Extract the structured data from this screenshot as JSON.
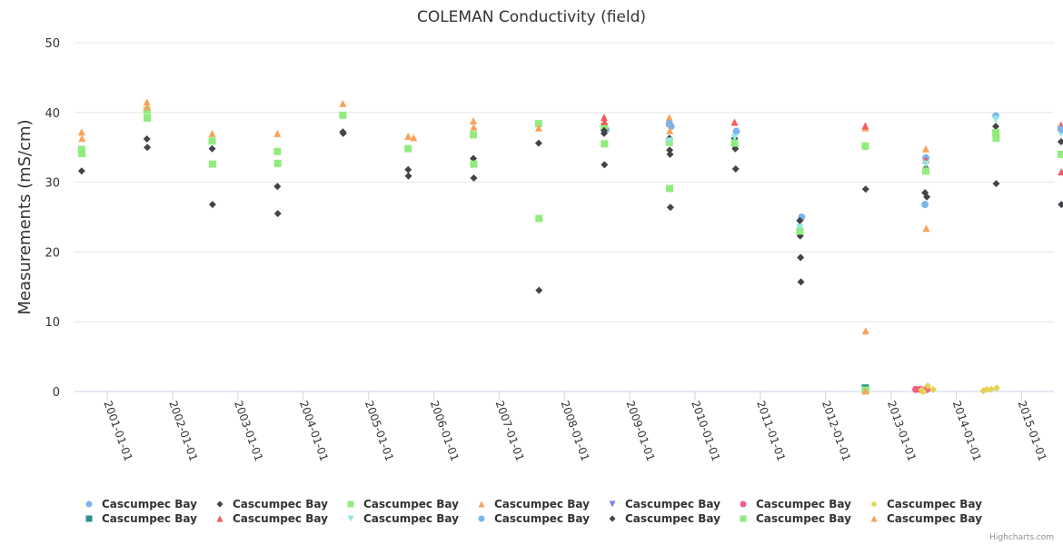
{
  "chart_data": {
    "type": "scatter",
    "title": "COLEMAN Conductivity (field)",
    "xlabel": "",
    "ylabel": "Measurements (mS/cm)",
    "ylim": [
      0,
      50
    ],
    "yticks": [
      0,
      10,
      20,
      30,
      40,
      50
    ],
    "xlim": [
      "2000-07-01",
      "2015-07-01"
    ],
    "xticks": [
      "2001-01-01",
      "2002-01-01",
      "2003-01-01",
      "2004-01-01",
      "2005-01-01",
      "2006-01-01",
      "2007-01-01",
      "2008-01-01",
      "2009-01-01",
      "2010-01-01",
      "2011-01-01",
      "2012-01-01",
      "2013-01-01",
      "2014-01-01",
      "2015-01-01"
    ],
    "grid": "horizontal",
    "legend_position": "bottom",
    "credits": "Highcharts.com",
    "series": [
      {
        "name": "Cascumpec Bay",
        "marker": "circle",
        "color": "#7cb5ec",
        "points": [
          [
            "2008-08-20",
            37.5
          ],
          [
            "2009-08-20",
            38.0
          ],
          [
            "2010-08-20",
            37.3
          ],
          [
            "2011-08-20",
            25.0
          ],
          [
            "2013-07-15",
            33.5
          ],
          [
            "2013-07-10",
            26.8
          ],
          [
            "2014-08-10",
            39.5
          ],
          [
            "2015-08-10",
            37.8
          ]
        ]
      },
      {
        "name": "Cascumpec Bay",
        "marker": "diamond",
        "color": "#434348",
        "points": [
          [
            "2000-08-10",
            31.6
          ],
          [
            "2001-08-10",
            36.2
          ],
          [
            "2001-08-12",
            35.0
          ],
          [
            "2002-08-10",
            34.8
          ],
          [
            "2002-08-12",
            26.8
          ],
          [
            "2003-08-10",
            29.4
          ],
          [
            "2003-08-12",
            25.5
          ],
          [
            "2004-08-10",
            37.2
          ],
          [
            "2004-08-12",
            37.0
          ],
          [
            "2005-08-10",
            31.8
          ],
          [
            "2005-08-12",
            30.9
          ],
          [
            "2006-08-10",
            33.4
          ],
          [
            "2006-08-12",
            30.6
          ],
          [
            "2007-08-10",
            35.6
          ],
          [
            "2007-08-12",
            14.5
          ],
          [
            "2008-08-10",
            37.0
          ],
          [
            "2008-08-12",
            32.5
          ],
          [
            "2009-08-10",
            36.3
          ],
          [
            "2009-08-12",
            34.6
          ],
          [
            "2009-08-14",
            34.0
          ],
          [
            "2009-08-16",
            26.4
          ],
          [
            "2010-08-10",
            36.3
          ],
          [
            "2010-08-12",
            35.2
          ],
          [
            "2010-08-14",
            34.8
          ],
          [
            "2010-08-16",
            31.9
          ],
          [
            "2011-08-10",
            24.5
          ],
          [
            "2011-08-12",
            22.3
          ],
          [
            "2011-08-14",
            19.2
          ],
          [
            "2011-08-16",
            15.7
          ],
          [
            "2012-08-10",
            35.1
          ],
          [
            "2012-08-12",
            29.0
          ],
          [
            "2013-07-10",
            28.5
          ],
          [
            "2013-07-20",
            27.9
          ],
          [
            "2013-07-15",
            32.0
          ],
          [
            "2014-08-10",
            38.0
          ],
          [
            "2014-08-12",
            29.8
          ],
          [
            "2015-08-10",
            35.8
          ],
          [
            "2015-08-12",
            26.8
          ]
        ]
      },
      {
        "name": "Cascumpec Bay",
        "marker": "square",
        "color": "#90ed7d",
        "points": [
          [
            "2000-08-10",
            34.7
          ],
          [
            "2000-08-12",
            34.1
          ],
          [
            "2001-08-10",
            40.3
          ],
          [
            "2001-08-12",
            39.2
          ],
          [
            "2002-08-10",
            35.9
          ],
          [
            "2002-08-12",
            32.6
          ],
          [
            "2003-08-10",
            34.4
          ],
          [
            "2003-08-12",
            32.7
          ],
          [
            "2004-08-10",
            39.6
          ],
          [
            "2005-08-10",
            34.8
          ],
          [
            "2006-08-10",
            36.8
          ],
          [
            "2006-08-12",
            32.6
          ],
          [
            "2007-08-10",
            38.4
          ],
          [
            "2007-08-12",
            24.8
          ],
          [
            "2008-08-10",
            38.0
          ],
          [
            "2008-08-12",
            35.5
          ],
          [
            "2009-08-10",
            35.7
          ],
          [
            "2009-08-12",
            29.1
          ],
          [
            "2010-08-10",
            35.6
          ],
          [
            "2011-08-10",
            23.0
          ],
          [
            "2012-08-10",
            35.2
          ],
          [
            "2012-08-12",
            0.3
          ],
          [
            "2013-07-15",
            31.6
          ],
          [
            "2014-08-10",
            37.1
          ],
          [
            "2014-08-12",
            36.3
          ],
          [
            "2015-08-10",
            34.0
          ]
        ]
      },
      {
        "name": "Cascumpec Bay",
        "marker": "triangle",
        "color": "#f7a35c",
        "points": [
          [
            "2000-08-10",
            37.2
          ],
          [
            "2000-08-12",
            36.3
          ],
          [
            "2001-08-10",
            41.5
          ],
          [
            "2001-08-12",
            40.8
          ],
          [
            "2002-08-10",
            37.0
          ],
          [
            "2003-08-10",
            37.0
          ],
          [
            "2004-08-10",
            41.3
          ],
          [
            "2005-08-10",
            36.6
          ],
          [
            "2005-09-10",
            36.4
          ],
          [
            "2006-08-10",
            38.8
          ],
          [
            "2006-08-12",
            37.9
          ],
          [
            "2007-08-10",
            37.8
          ],
          [
            "2009-08-10",
            39.3
          ],
          [
            "2009-08-12",
            37.4
          ],
          [
            "2012-08-10",
            37.8
          ],
          [
            "2012-08-12",
            8.7
          ],
          [
            "2012-08-14",
            0.2
          ],
          [
            "2013-07-15",
            34.8
          ],
          [
            "2013-07-17",
            23.4
          ]
        ]
      },
      {
        "name": "Cascumpec Bay",
        "marker": "triangle-down",
        "color": "#8085e9",
        "points": []
      },
      {
        "name": "Cascumpec Bay",
        "marker": "circle",
        "color": "#f15c80",
        "points": [
          [
            "2013-05-20",
            0.3
          ],
          [
            "2013-06-15",
            0.3
          ],
          [
            "2013-07-20",
            0.3
          ]
        ]
      },
      {
        "name": "Cascumpec Bay",
        "marker": "diamond",
        "color": "#e4d354",
        "points": [
          [
            "2013-06-20",
            0.2
          ],
          [
            "2013-07-01",
            0.0
          ],
          [
            "2013-07-25",
            0.8
          ],
          [
            "2013-08-25",
            0.3
          ],
          [
            "2014-06-01",
            0.1
          ],
          [
            "2014-06-20",
            0.3
          ],
          [
            "2014-07-15",
            0.3
          ],
          [
            "2014-08-15",
            0.5
          ]
        ]
      },
      {
        "name": "Cascumpec Bay",
        "marker": "square",
        "color": "#2b908f",
        "points": [
          [
            "2012-08-10",
            0.5
          ]
        ]
      },
      {
        "name": "Cascumpec Bay",
        "marker": "triangle",
        "color": "#f45b5b",
        "points": [
          [
            "2008-08-10",
            39.3
          ],
          [
            "2008-08-12",
            38.7
          ],
          [
            "2009-08-10",
            38.5
          ],
          [
            "2010-08-10",
            38.6
          ],
          [
            "2012-08-10",
            38.1
          ],
          [
            "2013-07-15",
            33.2
          ],
          [
            "2015-08-10",
            38.2
          ],
          [
            "2015-08-12",
            31.5
          ]
        ]
      },
      {
        "name": "Cascumpec Bay",
        "marker": "triangle-down",
        "color": "#91e8e1",
        "points": [
          [
            "2009-08-10",
            35.9
          ],
          [
            "2010-08-10",
            36.4
          ],
          [
            "2011-08-10",
            23.5
          ],
          [
            "2013-07-15",
            32.6
          ],
          [
            "2014-08-10",
            39.0
          ],
          [
            "2015-08-10",
            37.0
          ]
        ]
      },
      {
        "name": "Cascumpec Bay",
        "marker": "circle",
        "color": "#7cb5ec",
        "points": [
          [
            "2009-08-10",
            38.4
          ],
          [
            "2015-08-10",
            37.6
          ]
        ]
      },
      {
        "name": "Cascumpec Bay",
        "marker": "diamond",
        "color": "#434348",
        "points": [
          [
            "2008-08-10",
            37.4
          ],
          [
            "2011-08-10",
            24.5
          ]
        ]
      },
      {
        "name": "Cascumpec Bay",
        "marker": "square",
        "color": "#90ed7d",
        "points": [
          [
            "2012-08-10",
            0.2
          ]
        ]
      },
      {
        "name": "Cascumpec Bay",
        "marker": "triangle",
        "color": "#f7a35c",
        "points": [
          [
            "2012-08-10",
            0.1
          ]
        ]
      }
    ],
    "legend": {
      "rows": [
        [
          0,
          1,
          2,
          3,
          4,
          5,
          6
        ],
        [
          7,
          8,
          9,
          10,
          11,
          12,
          13
        ]
      ]
    }
  }
}
